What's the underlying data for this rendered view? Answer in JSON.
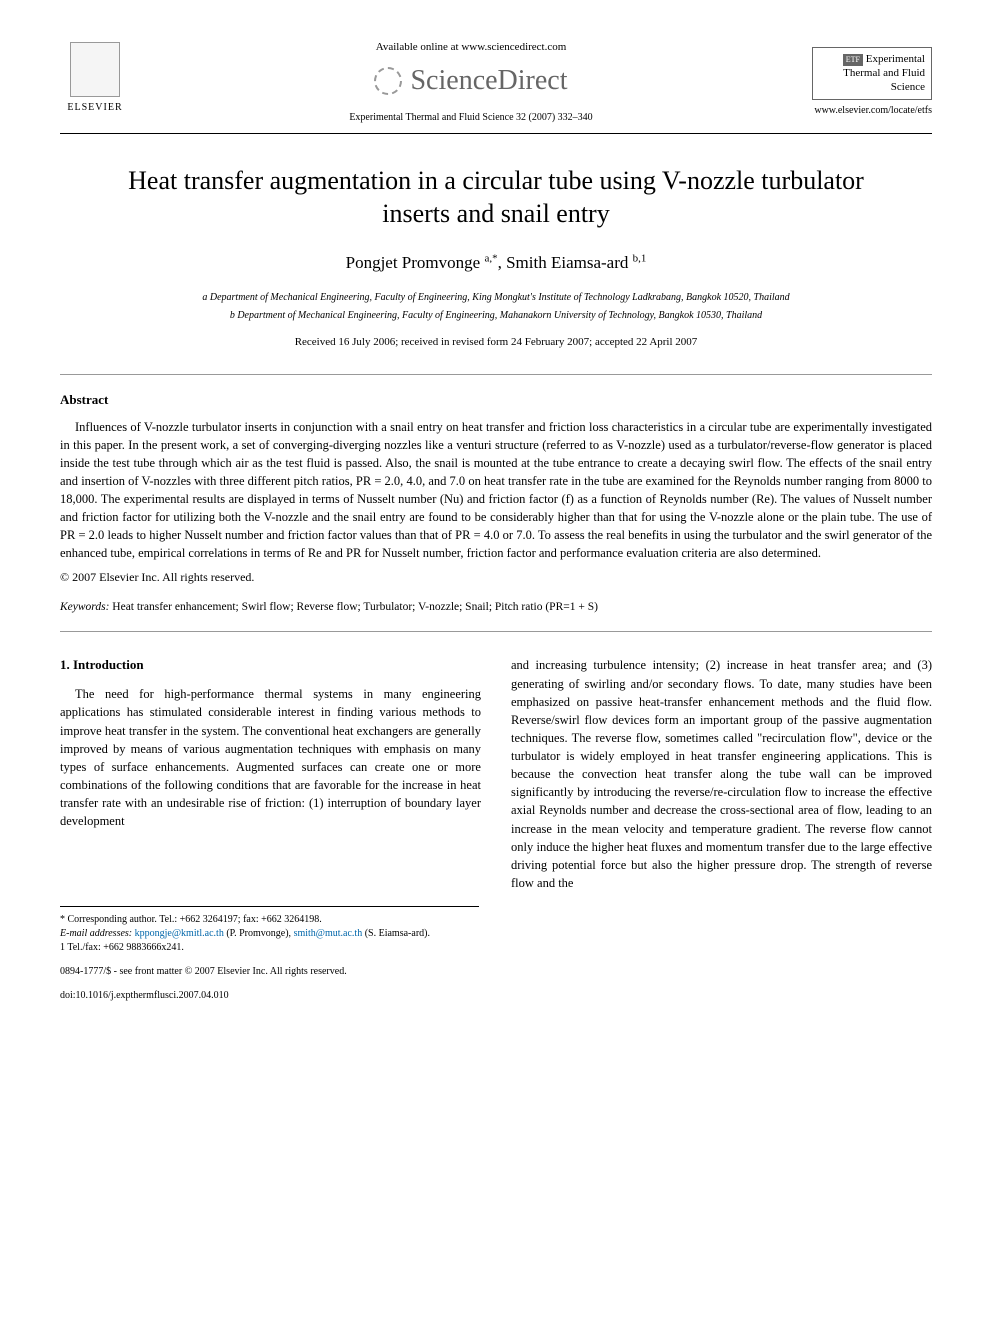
{
  "header": {
    "available_online": "Available online at www.sciencedirect.com",
    "sciencedirect": "ScienceDirect",
    "journal_ref": "Experimental Thermal and Fluid Science 32 (2007) 332–340",
    "elsevier": "ELSEVIER",
    "etfs_title": "Experimental Thermal and Fluid Science",
    "etfs_label": "ETF",
    "journal_url": "www.elsevier.com/locate/etfs"
  },
  "title": "Heat transfer augmentation in a circular tube using V-nozzle turbulator inserts and snail entry",
  "authors": "Pongjet Promvonge ",
  "authors_sup1": "a,*",
  "authors_sep": ", Smith Eiamsa-ard ",
  "authors_sup2": "b,1",
  "affil_a": "a Department of Mechanical Engineering, Faculty of Engineering, King Mongkut's Institute of Technology Ladkrabang, Bangkok 10520, Thailand",
  "affil_b": "b Department of Mechanical Engineering, Faculty of Engineering, Mahanakorn University of Technology, Bangkok 10530, Thailand",
  "dates": "Received 16 July 2006; received in revised form 24 February 2007; accepted 22 April 2007",
  "abstract_heading": "Abstract",
  "abstract_text": "Influences of V-nozzle turbulator inserts in conjunction with a snail entry on heat transfer and friction loss characteristics in a circular tube are experimentally investigated in this paper. In the present work, a set of converging-diverging nozzles like a venturi structure (referred to as V-nozzle) used as a turbulator/reverse-flow generator is placed inside the test tube through which air as the test fluid is passed. Also, the snail is mounted at the tube entrance to create a decaying swirl flow. The effects of the snail entry and insertion of V-nozzles with three different pitch ratios, PR = 2.0, 4.0, and 7.0 on heat transfer rate in the tube are examined for the Reynolds number ranging from 8000 to 18,000. The experimental results are displayed in terms of Nusselt number (Nu) and friction factor (f) as a function of Reynolds number (Re). The values of Nusselt number and friction factor for utilizing both the V-nozzle and the snail entry are found to be considerably higher than that for using the V-nozzle alone or the plain tube. The use of PR = 2.0 leads to higher Nusselt number and friction factor values than that of PR = 4.0 or 7.0. To assess the real benefits in using the turbulator and the swirl generator of the enhanced tube, empirical correlations in terms of Re and PR for Nusselt number, friction factor and performance evaluation criteria are also determined.",
  "copyright": "© 2007 Elsevier Inc. All rights reserved.",
  "keywords_label": "Keywords:",
  "keywords_text": "Heat transfer enhancement; Swirl flow; Reverse flow; Turbulator; V-nozzle; Snail; Pitch ratio (PR=1 + S)",
  "intro_heading": "1. Introduction",
  "intro_col1": "The need for high-performance thermal systems in many engineering applications has stimulated considerable interest in finding various methods to improve heat transfer in the system. The conventional heat exchangers are generally improved by means of various augmentation techniques with emphasis on many types of surface enhancements. Augmented surfaces can create one or more combinations of the following conditions that are favorable for the increase in heat transfer rate with an undesirable rise of friction: (1) interruption of boundary layer development",
  "intro_col2": "and increasing turbulence intensity; (2) increase in heat transfer area; and (3) generating of swirling and/or secondary flows. To date, many studies have been emphasized on passive heat-transfer enhancement methods and the fluid flow. Reverse/swirl flow devices form an important group of the passive augmentation techniques. The reverse flow, sometimes called \"recirculation flow\", device or the turbulator is widely employed in heat transfer engineering applications. This is because the convection heat transfer along the tube wall can be improved significantly by introducing the reverse/re-circulation flow to increase the effective axial Reynolds number and decrease the cross-sectional area of flow, leading to an increase in the mean velocity and temperature gradient. The reverse flow cannot only induce the higher heat fluxes and momentum transfer due to the large effective driving potential force but also the higher pressure drop. The strength of reverse flow and the",
  "footnotes": {
    "corr": "* Corresponding author. Tel.: +662 3264197; fax: +662 3264198.",
    "email_label": "E-mail addresses:",
    "email1": "kppongje@kmitl.ac.th",
    "email1_name": " (P. Promvonge), ",
    "email2": "smith@mut.ac.th",
    "email2_name": " (S. Eiamsa-ard).",
    "tel1": "1 Tel./fax: +662 9883666x241."
  },
  "doi": "0894-1777/$ - see front matter © 2007 Elsevier Inc. All rights reserved.",
  "doi2": "doi:10.1016/j.expthermflusci.2007.04.010"
}
